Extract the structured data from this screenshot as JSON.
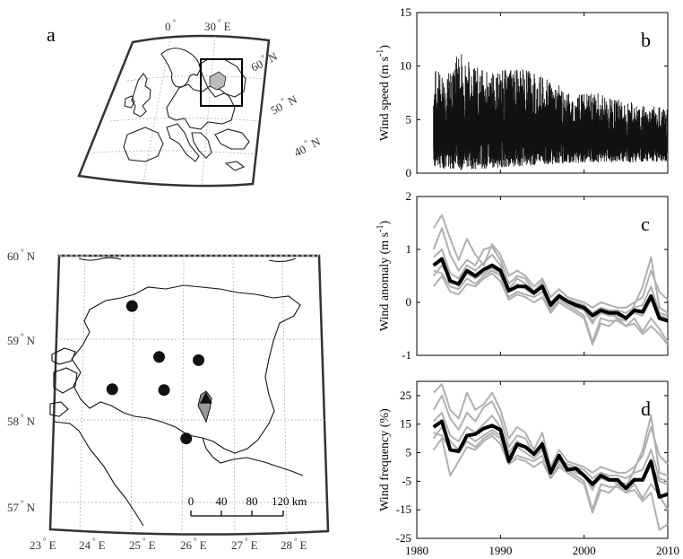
{
  "panels": {
    "a": {
      "letter": "a",
      "lon_labels": [
        {
          "deg": "0",
          "unit": ""
        },
        {
          "deg": "30",
          "unit": "E"
        }
      ],
      "lat_labels": [
        {
          "deg": "60",
          "unit": "N"
        },
        {
          "deg": "50",
          "unit": "N"
        },
        {
          "deg": "40",
          "unit": "N"
        }
      ]
    },
    "estonia_map": {
      "lat_labels": [
        {
          "deg": "60",
          "unit": "N"
        },
        {
          "deg": "59",
          "unit": "N"
        },
        {
          "deg": "58",
          "unit": "N"
        },
        {
          "deg": "57",
          "unit": "N"
        }
      ],
      "lon_labels": [
        {
          "deg": "23",
          "unit": "E"
        },
        {
          "deg": "24",
          "unit": "E"
        },
        {
          "deg": "25",
          "unit": "E"
        },
        {
          "deg": "26",
          "unit": "E"
        },
        {
          "deg": "27",
          "unit": "E"
        },
        {
          "deg": "28",
          "unit": "E"
        }
      ],
      "scale_bar": {
        "ticks": [
          "0",
          "40",
          "80",
          "120 km"
        ]
      },
      "stations": [
        {
          "lon": 24.95,
          "lat": 59.41
        },
        {
          "lon": 25.5,
          "lat": 58.78
        },
        {
          "lon": 26.3,
          "lat": 58.74
        },
        {
          "lon": 24.55,
          "lat": 58.38
        },
        {
          "lon": 25.6,
          "lat": 58.37
        },
        {
          "lon": 26.05,
          "lat": 57.77
        }
      ],
      "reference_station": {
        "lon": 26.45,
        "lat": 58.27
      }
    }
  },
  "chart_data": [
    {
      "type": "line",
      "letter": "b",
      "ylabel": "Wind speed (m s",
      "ylabel_sup": "-1",
      "ylabel_end": ")",
      "ylim": [
        0,
        15
      ],
      "yticks": [
        "0",
        "5",
        "10",
        "15"
      ],
      "xlim": [
        1980,
        2010
      ],
      "series": [
        {
          "color": "#111111",
          "style": "dense-daily",
          "upper_envelope": [
            [
              1982,
              10
            ],
            [
              1984,
              9.5
            ],
            [
              1985,
              11.8
            ],
            [
              1987,
              10
            ],
            [
              1989,
              9.5
            ],
            [
              1991,
              9.8
            ],
            [
              1993,
              9.8
            ],
            [
              1995,
              9
            ],
            [
              1997,
              8.2
            ],
            [
              1999,
              7.3
            ],
            [
              2001,
              7.6
            ],
            [
              2003,
              7.2
            ],
            [
              2005,
              6.8
            ],
            [
              2007,
              6.4
            ],
            [
              2010,
              6.2
            ]
          ],
          "lower_envelope": [
            [
              1982,
              0.5
            ],
            [
              1985,
              0.3
            ],
            [
              1990,
              0.5
            ],
            [
              1995,
              0.8
            ],
            [
              2000,
              1
            ],
            [
              2005,
              1
            ],
            [
              2010,
              1
            ]
          ]
        }
      ],
      "grid": false
    },
    {
      "type": "line",
      "letter": "c",
      "ylabel": "Wind anomaly (m s",
      "ylabel_sup": "-1",
      "ylabel_end": ")",
      "ylim": [
        -1,
        2
      ],
      "yticks": [
        "-1",
        "0",
        "1",
        "2"
      ],
      "xlim": [
        1980,
        2010
      ],
      "x": [
        1982,
        1983,
        1984,
        1985,
        1986,
        1987,
        1988,
        1989,
        1990,
        1991,
        1992,
        1993,
        1994,
        1995,
        1996,
        1997,
        1998,
        1999,
        2000,
        2001,
        2002,
        2003,
        2004,
        2005,
        2006,
        2007,
        2008,
        2009,
        2010
      ],
      "series": [
        {
          "color": "#000000",
          "width": 4,
          "values": [
            0.7,
            0.82,
            0.4,
            0.35,
            0.6,
            0.5,
            0.62,
            0.7,
            0.6,
            0.22,
            0.3,
            0.3,
            0.18,
            0.3,
            -0.05,
            0.12,
            0.02,
            -0.05,
            -0.1,
            -0.25,
            -0.15,
            -0.2,
            -0.2,
            -0.3,
            -0.15,
            -0.18,
            0.12,
            -0.3,
            -0.35
          ]
        },
        {
          "color": "#b0b0b0",
          "width": 2,
          "values": [
            1.4,
            1.65,
            1.2,
            0.8,
            1.2,
            0.9,
            0.7,
            1.1,
            0.9,
            0.5,
            0.6,
            0.5,
            0.3,
            0.45,
            0.1,
            0.25,
            0.1,
            0.05,
            0.0,
            -0.1,
            0.0,
            -0.05,
            -0.1,
            -0.1,
            0.0,
            0.1,
            0.6,
            0.2,
            0.05
          ]
        },
        {
          "color": "#b0b0b0",
          "width": 2,
          "values": [
            1.0,
            1.4,
            0.9,
            0.6,
            0.8,
            0.7,
            1.0,
            1.05,
            0.8,
            0.35,
            0.5,
            0.45,
            0.2,
            0.4,
            -0.1,
            0.15,
            0.0,
            -0.05,
            -0.15,
            -0.4,
            -0.1,
            -0.2,
            -0.3,
            -0.35,
            -0.05,
            0.3,
            0.85,
            -0.1,
            -0.2
          ]
        },
        {
          "color": "#b0b0b0",
          "width": 2,
          "values": [
            0.6,
            0.55,
            0.3,
            0.25,
            0.45,
            0.35,
            0.5,
            0.6,
            0.5,
            0.1,
            0.2,
            0.15,
            0.1,
            0.2,
            -0.15,
            0.05,
            -0.05,
            -0.15,
            -0.25,
            -0.75,
            -0.3,
            -0.35,
            -0.35,
            -0.45,
            -0.3,
            -0.55,
            -0.3,
            -0.5,
            -0.75
          ]
        },
        {
          "color": "#b0b0b0",
          "width": 2,
          "values": [
            0.3,
            0.5,
            0.2,
            0.15,
            0.35,
            0.3,
            0.45,
            0.55,
            0.4,
            0.05,
            0.15,
            0.1,
            0.0,
            0.1,
            -0.2,
            0.0,
            -0.1,
            -0.2,
            -0.3,
            -0.8,
            -0.4,
            -0.45,
            -0.3,
            -0.45,
            -0.4,
            -0.6,
            -0.45,
            -0.6,
            -0.8
          ]
        },
        {
          "color": "#b0b0b0",
          "width": 2,
          "values": [
            0.5,
            0.7,
            0.45,
            0.3,
            0.55,
            0.45,
            0.55,
            0.65,
            0.55,
            0.2,
            0.35,
            0.25,
            0.15,
            0.3,
            -0.05,
            0.1,
            0.0,
            -0.1,
            -0.15,
            -0.35,
            -0.2,
            -0.25,
            -0.25,
            -0.3,
            -0.2,
            -0.25,
            0.05,
            -0.25,
            -0.3
          ]
        },
        {
          "color": "#b0b0b0",
          "width": 2,
          "values": [
            0.85,
            1.0,
            0.55,
            0.45,
            0.7,
            0.6,
            0.75,
            0.9,
            0.7,
            0.25,
            0.45,
            0.35,
            0.2,
            0.35,
            0.0,
            0.15,
            0.05,
            0.0,
            -0.05,
            -0.2,
            -0.1,
            -0.15,
            -0.15,
            -0.2,
            -0.1,
            -0.05,
            0.3,
            -0.2,
            -0.25
          ]
        }
      ],
      "grid": false
    },
    {
      "type": "line",
      "letter": "d",
      "ylabel": "Wind frequency (%)",
      "ylim": [
        -25,
        30
      ],
      "yticks": [
        "-25",
        "-15",
        "-5",
        "5",
        "15",
        "25"
      ],
      "ytick_values": [
        -25,
        -15,
        -5,
        5,
        15,
        25
      ],
      "xlim": [
        1980,
        2010
      ],
      "xticks": [
        "1980",
        "1990",
        "2000",
        "2010"
      ],
      "x": [
        1982,
        1983,
        1984,
        1985,
        1986,
        1987,
        1988,
        1989,
        1990,
        1991,
        1992,
        1993,
        1994,
        1995,
        1996,
        1997,
        1998,
        1999,
        2000,
        2001,
        2002,
        2003,
        2004,
        2005,
        2006,
        2007,
        2008,
        2009,
        2010
      ],
      "series": [
        {
          "color": "#000000",
          "width": 4,
          "values": [
            14,
            16,
            6,
            5.5,
            11,
            11.5,
            13.5,
            14.5,
            13,
            2,
            8,
            7,
            4.5,
            8,
            -2,
            4,
            -1,
            -0.5,
            -3,
            -6,
            -3,
            -4.5,
            -4.5,
            -7.5,
            -4.5,
            -4.5,
            2,
            -10.5,
            -9.5
          ]
        },
        {
          "color": "#b0b0b0",
          "width": 2,
          "values": [
            26,
            29,
            20,
            17,
            26,
            20,
            22,
            26,
            20,
            10,
            14,
            12,
            6,
            12,
            0,
            6,
            2,
            1,
            0,
            -2,
            0,
            -1,
            -2,
            -2,
            0,
            4,
            14,
            4,
            1
          ]
        },
        {
          "color": "#b0b0b0",
          "width": 2,
          "values": [
            20,
            25,
            17,
            13,
            19,
            16,
            21,
            23,
            17,
            7,
            11,
            10,
            4,
            9,
            -2,
            3,
            0,
            -1,
            -3,
            -8,
            -2,
            -4,
            -6,
            -7,
            -1,
            6,
            18,
            -2,
            -3
          ]
        },
        {
          "color": "#b0b0b0",
          "width": 2,
          "values": [
            12,
            11,
            6,
            5,
            9,
            7,
            10,
            12,
            10,
            2,
            4,
            3,
            2,
            4,
            -3,
            1,
            -1,
            -3,
            -5,
            -15,
            -6,
            -7,
            -7,
            -9,
            -6,
            -11,
            -6,
            -10,
            -15
          ]
        },
        {
          "color": "#b0b0b0",
          "width": 2,
          "values": [
            6,
            10,
            -3,
            2,
            7,
            6,
            9,
            11,
            8,
            1,
            3,
            2,
            0,
            2,
            -4,
            0,
            -2,
            -4,
            -6,
            -16,
            -8,
            -9,
            -6,
            -9,
            -8,
            -12,
            -9,
            -22,
            -20
          ]
        },
        {
          "color": "#b0b0b0",
          "width": 2,
          "values": [
            10,
            14,
            9,
            6,
            11,
            9,
            11,
            13,
            11,
            4,
            7,
            5,
            3,
            6,
            -1,
            2,
            0,
            -2,
            -3,
            -7,
            -4,
            -5,
            -5,
            -6,
            -4,
            -5,
            1,
            -5,
            -6
          ]
        },
        {
          "color": "#b0b0b0",
          "width": 2,
          "values": [
            16,
            19,
            11,
            9,
            14,
            12,
            15,
            18,
            14,
            5,
            9,
            7,
            4,
            7,
            0,
            3,
            1,
            0,
            -1,
            -4,
            -2,
            -3,
            -3,
            -4,
            -2,
            -1,
            6,
            -4,
            -5
          ]
        }
      ],
      "grid": false
    }
  ]
}
